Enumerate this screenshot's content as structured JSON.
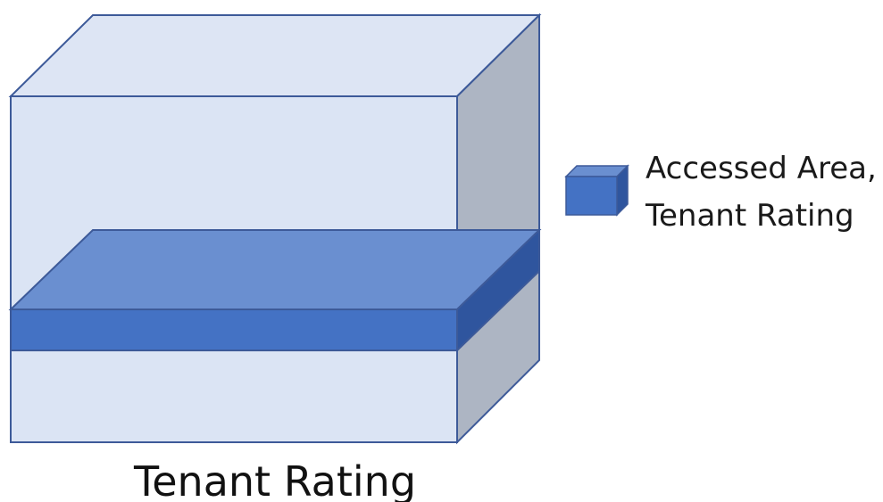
{
  "diagram": {
    "caption": "Tenant Rating",
    "legend": {
      "line1": "Accessed Area,",
      "line2": "Tenant Rating"
    }
  },
  "colors": {
    "box_front": "#dbe4f4",
    "box_top": "#dde5f4",
    "box_side": "#adb5c3",
    "box_stroke": "#3d5a99",
    "slab_front": "#4472c4",
    "slab_top": "#6a8fd0",
    "slab_side": "#2f559e",
    "background": "#ffffff"
  }
}
